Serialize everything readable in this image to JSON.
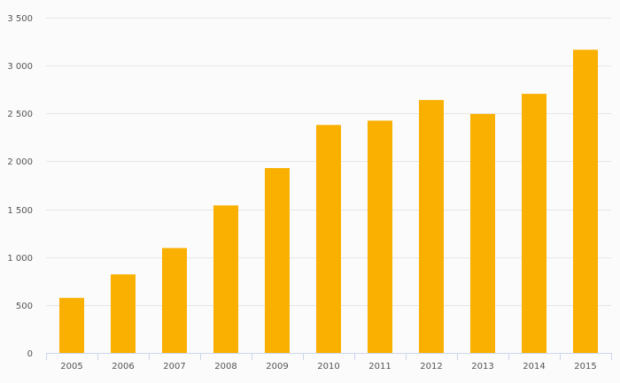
{
  "chart_data": {
    "type": "bar",
    "title": "",
    "xlabel": "",
    "ylabel": "",
    "categories": [
      "2005",
      "2006",
      "2007",
      "2008",
      "2009",
      "2010",
      "2011",
      "2012",
      "2013",
      "2014",
      "2015"
    ],
    "values": [
      575,
      820,
      1095,
      1540,
      1930,
      2380,
      2425,
      2640,
      2495,
      2705,
      3165
    ],
    "ylim": [
      0,
      3500
    ],
    "yticks": [
      0,
      500,
      1000,
      1500,
      2000,
      2500,
      3000,
      3500
    ],
    "ytick_labels": [
      "0",
      "500",
      "1 000",
      "1 500",
      "2 000",
      "2 500",
      "3 000",
      "3 500"
    ],
    "grid": true,
    "legend": "none",
    "colors": {
      "bar": "#f9b000",
      "grid": "#e6e6e6",
      "axis": "#ccd6eb",
      "text": "#555555",
      "background": "#fbfbfb"
    }
  }
}
